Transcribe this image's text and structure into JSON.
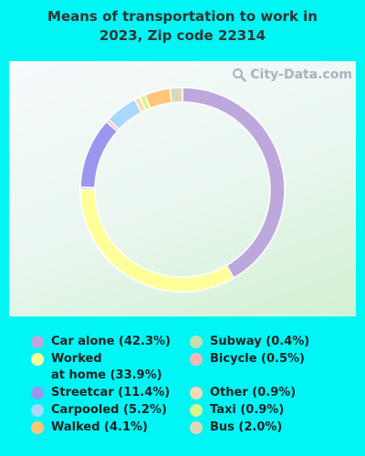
{
  "title_line1": "Means of transportation to work in",
  "title_line2": "2023, Zip code 22314",
  "watermark": "City-Data.com",
  "chart_data": {
    "type": "pie",
    "title": "Means of transportation to work in 2023, Zip code 22314",
    "donut": true,
    "start_angle_deg": 0,
    "slices": [
      {
        "label": "Car alone",
        "value": 42.3,
        "color": "#bca8dc"
      },
      {
        "label": "Worked at home",
        "value": 33.9,
        "color": "#ffff99"
      },
      {
        "label": "Subway",
        "value": 0.4,
        "color": "#c7dcb0"
      },
      {
        "label": "Streetcar",
        "value": 11.4,
        "color": "#9a97ee"
      },
      {
        "label": "Bicycle",
        "value": 0.5,
        "color": "#f2b7b7"
      },
      {
        "label": "Carpooled",
        "value": 5.2,
        "color": "#a9d8fb"
      },
      {
        "label": "Other",
        "value": 0.9,
        "color": "#fcd9b5"
      },
      {
        "label": "Taxi",
        "value": 0.9,
        "color": "#d6f58a"
      },
      {
        "label": "Walked",
        "value": 4.1,
        "color": "#ffc57a"
      },
      {
        "label": "Bus",
        "value": 2.0,
        "color": "#ddd8ba"
      }
    ],
    "legend_left": [
      {
        "text": "Car alone (42.3%)",
        "color": "#bca8dc"
      },
      {
        "text": "Worked\nat home (33.9%)",
        "color": "#ffff99"
      },
      {
        "text": "Streetcar (11.4%)",
        "color": "#9a97ee"
      },
      {
        "text": "Carpooled (5.2%)",
        "color": "#a9d8fb"
      },
      {
        "text": "Walked (4.1%)",
        "color": "#ffc57a"
      }
    ],
    "legend_right": [
      {
        "text": "Subway (0.4%)",
        "color": "#c7dcb0"
      },
      {
        "text": "Bicycle (0.5%)",
        "color": "#f2b7b7"
      },
      {
        "text": "Other (0.9%)",
        "color": "#fcd9b5"
      },
      {
        "text": "Taxi (0.9%)",
        "color": "#d6f58a"
      },
      {
        "text": "Bus (2.0%)",
        "color": "#ddd8ba"
      }
    ]
  }
}
